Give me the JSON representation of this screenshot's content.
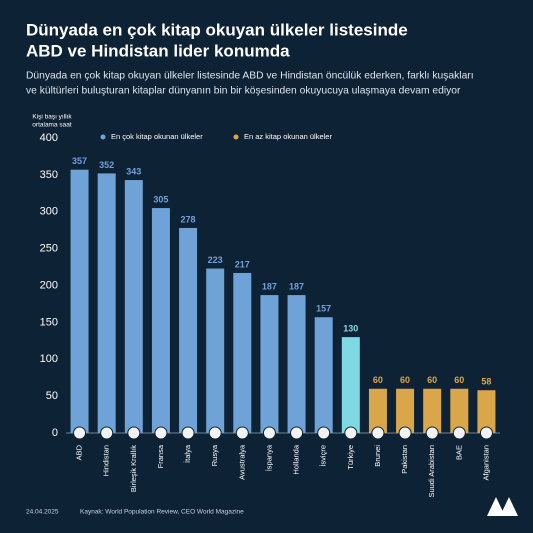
{
  "chart_data": {
    "type": "bar",
    "title": [
      "Dünyada en çok kitap okuyan ülkeler listesinde",
      "ABD ve Hindistan lider konumda"
    ],
    "subtitle": [
      "Dünyada en çok kitap okuyan ülkeler listesinde ABD ve Hindistan öncülük ederken, farklı kuşakları",
      "ve kültürleri buluşturan kitaplar dünyanın bin bir köşesinden okuyucuya ulaşmaya devam ediyor"
    ],
    "y_label": [
      "Kişi başı yıllık",
      "ortalama saat"
    ],
    "legend": [
      {
        "name": "En çok kitap okunan ülkeler",
        "color": "#6fa2d6"
      },
      {
        "name": "En az kitap okunan ülkeler",
        "color": "#d9a64a"
      }
    ],
    "categories": [
      "ABD",
      "Hindistan",
      "Birleşik Krallık",
      "Fransa",
      "İtalya",
      "Rusya",
      "Avustralya",
      "İspanya",
      "Hollanda",
      "İsviçre",
      "Türkiye",
      "Brunei",
      "Pakistan",
      "Suudi Arabistan",
      "BAE",
      "Afganistan"
    ],
    "values": [
      357,
      352,
      343,
      305,
      278,
      223,
      217,
      187,
      187,
      157,
      130,
      60,
      60,
      60,
      60,
      58
    ],
    "colors": [
      "#6fa2d6",
      "#6fa2d6",
      "#6fa2d6",
      "#6fa2d6",
      "#6fa2d6",
      "#6fa2d6",
      "#6fa2d6",
      "#6fa2d6",
      "#6fa2d6",
      "#6fa2d6",
      "#7fd9e2",
      "#d9a64a",
      "#d9a64a",
      "#d9a64a",
      "#d9a64a",
      "#d9a64a"
    ],
    "ylim": [
      0,
      400
    ],
    "yticks": [
      0,
      50,
      100,
      150,
      200,
      250,
      300,
      350,
      400
    ],
    "grid": false,
    "date": "24.04.2025",
    "source": "Kaynak: World Population Review, CEO World Magazine"
  }
}
